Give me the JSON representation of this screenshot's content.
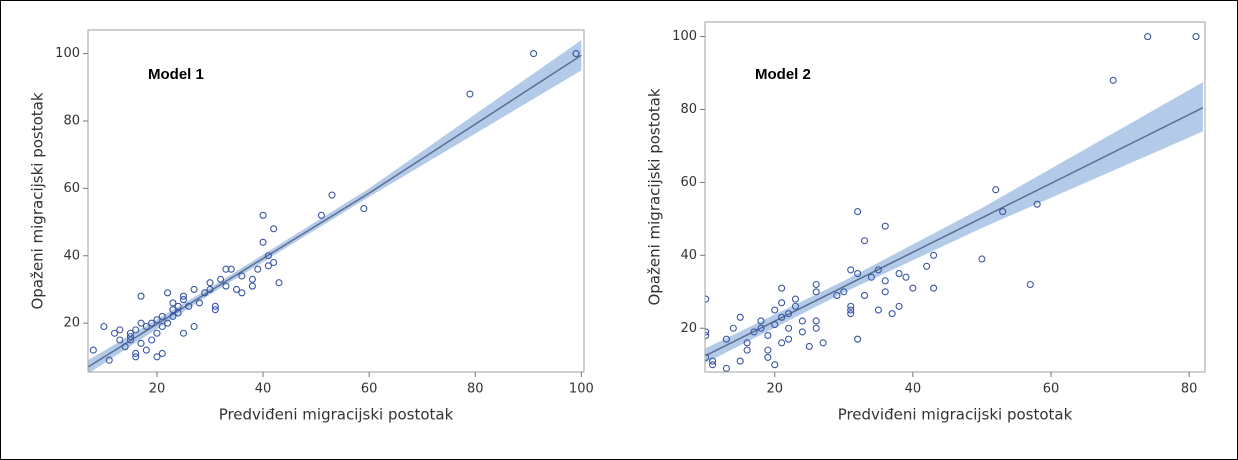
{
  "chart_data": [
    {
      "type": "scatter",
      "title": "Model 1",
      "x_label": "Predviđeni migracijski postotak",
      "y_label": "Opaženi migracijski postotak",
      "point_color": "#3a55a4",
      "line_color": "#5b6f91",
      "band_color": "#b3cae8",
      "xlim": [
        7,
        100.5
      ],
      "ylim": [
        5.5,
        107
      ],
      "xticks": [
        20,
        40,
        60,
        80,
        100
      ],
      "yticks": [
        20,
        40,
        60,
        80,
        100
      ],
      "x": [
        8,
        10,
        11,
        12,
        13,
        13,
        14,
        15,
        15,
        15,
        16,
        16,
        16,
        17,
        17,
        17,
        18,
        18,
        19,
        19,
        20,
        20,
        20,
        21,
        21,
        21,
        22,
        22,
        23,
        23,
        23,
        24,
        24,
        25,
        25,
        25,
        26,
        27,
        27,
        28,
        29,
        30,
        30,
        31,
        31,
        32,
        33,
        33,
        34,
        35,
        36,
        36,
        38,
        38,
        39,
        40,
        40,
        41,
        41,
        42,
        42,
        43,
        51,
        53,
        59,
        79,
        91,
        99
      ],
      "y": [
        12,
        19,
        9,
        17,
        15,
        18,
        13,
        16,
        15,
        17,
        18,
        11,
        10,
        20,
        14,
        28,
        19,
        12,
        20,
        15,
        17,
        21,
        10,
        11,
        22,
        19,
        20,
        29,
        22,
        24,
        26,
        23,
        25,
        17,
        27,
        28,
        25,
        19,
        30,
        26,
        29,
        30,
        32,
        25,
        24,
        33,
        36,
        31,
        36,
        30,
        29,
        34,
        31,
        33,
        36,
        52,
        44,
        40,
        37,
        38,
        48,
        32,
        52,
        58,
        54,
        88,
        100,
        100
      ],
      "fit": {
        "x": [
          7,
          30,
          60,
          100
        ],
        "y": [
          7,
          29.5,
          58.6,
          99.5
        ],
        "lower": [
          5,
          28.5,
          57.5,
          95
        ],
        "upper": [
          9,
          30.5,
          60,
          104
        ]
      }
    },
    {
      "type": "scatter",
      "title": "Model 2",
      "x_label": "Predviđeni migracijski postotak",
      "y_label": "Opaženi migracijski postotak",
      "point_color": "#3a55a4",
      "line_color": "#5b6f91",
      "band_color": "#b3cae8",
      "xlim": [
        9.9,
        82.3
      ],
      "ylim": [
        8,
        104
      ],
      "xticks": [
        20,
        40,
        60,
        80
      ],
      "yticks": [
        20,
        40,
        60,
        80,
        100
      ],
      "x": [
        10,
        10,
        10,
        10,
        11,
        11,
        13,
        13,
        14,
        15,
        15,
        16,
        16,
        17,
        18,
        18,
        19,
        19,
        19,
        20,
        20,
        20,
        21,
        21,
        21,
        21,
        22,
        22,
        22,
        23,
        23,
        24,
        24,
        25,
        26,
        26,
        26,
        26,
        27,
        29,
        30,
        31,
        31,
        31,
        31,
        32,
        32,
        32,
        33,
        33,
        34,
        35,
        35,
        36,
        36,
        36,
        37,
        38,
        38,
        39,
        40,
        42,
        43,
        43,
        50,
        52,
        53,
        57,
        58,
        69,
        74,
        81
      ],
      "y": [
        28,
        19,
        18,
        12,
        10,
        11,
        17,
        9,
        20,
        23,
        11,
        16,
        14,
        19,
        22,
        20,
        12,
        14,
        18,
        25,
        21,
        10,
        31,
        27,
        23,
        16,
        20,
        17,
        24,
        28,
        26,
        22,
        19,
        15,
        20,
        22,
        30,
        32,
        16,
        29,
        30,
        36,
        26,
        24,
        25,
        52,
        17,
        35,
        29,
        44,
        34,
        36,
        25,
        48,
        30,
        33,
        24,
        26,
        35,
        34,
        31,
        37,
        40,
        31,
        39,
        58,
        52,
        32,
        54,
        88,
        100,
        100
      ],
      "fit": {
        "x": [
          10,
          30,
          50,
          82
        ],
        "y": [
          12.5,
          31.4,
          50.3,
          80.5
        ],
        "lower": [
          10.5,
          29.8,
          47.5,
          74
        ],
        "upper": [
          14.5,
          33,
          53,
          87.5
        ]
      }
    }
  ]
}
